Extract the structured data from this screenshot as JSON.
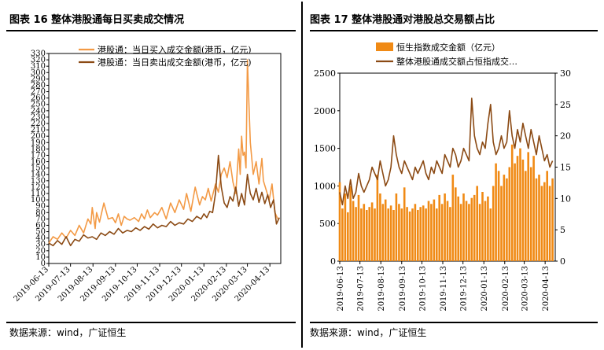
{
  "panels": {
    "left": {
      "title": "图表 16 整体港股通每日买卖成交情况",
      "source": "数据来源：wind，广证恒生"
    },
    "right": {
      "title": "图表 17 整体港股通对港股总交易额占比",
      "source": "数据来源：wind，广证恒生"
    }
  },
  "chart_data": [
    {
      "type": "line",
      "grid": false,
      "legend_placement": "top",
      "y_ticks": [
        0,
        10,
        20,
        30,
        40,
        50,
        60,
        70,
        80,
        90,
        100,
        110,
        120,
        130,
        140,
        150,
        160,
        170,
        180,
        190,
        200,
        210,
        220,
        230,
        240,
        250,
        260,
        270,
        280,
        290,
        300,
        310,
        320,
        330
      ],
      "ylim": [
        0,
        330
      ],
      "x_tick_labels": [
        "2019-06-13",
        "2019-07-13",
        "2019-08-13",
        "2019-09-13",
        "2019-10-13",
        "2019-11-13",
        "2019-12-13",
        "2020-01-13",
        "2020-02-13",
        "2020-03-13",
        "2020-04-13"
      ],
      "x_tick_days": [
        0,
        30,
        61,
        92,
        122,
        153,
        183,
        214,
        245,
        274,
        305
      ],
      "x_range_days": [
        0,
        320
      ],
      "series": [
        {
          "name": "港股通：当日买入成交金额(港币，亿元)",
          "color": "#F39A45",
          "x_days": [
            0,
            6,
            12,
            18,
            24,
            30,
            36,
            42,
            48,
            54,
            58,
            60,
            64,
            66,
            70,
            76,
            82,
            88,
            92,
            96,
            100,
            104,
            108,
            112,
            118,
            124,
            128,
            132,
            136,
            140,
            146,
            150,
            156,
            162,
            168,
            174,
            180,
            186,
            190,
            196,
            202,
            208,
            212,
            216,
            220,
            224,
            230,
            234,
            238,
            242,
            246,
            250,
            254,
            258,
            262,
            264,
            266,
            268,
            270,
            272,
            274,
            276,
            278,
            282,
            286,
            290,
            294,
            296,
            300,
            304,
            308,
            312,
            316
          ],
          "values": [
            32,
            42,
            38,
            48,
            40,
            52,
            44,
            60,
            48,
            70,
            62,
            88,
            55,
            80,
            65,
            95,
            70,
            72,
            64,
            78,
            60,
            74,
            70,
            68,
            72,
            66,
            78,
            70,
            84,
            72,
            80,
            76,
            88,
            70,
            95,
            80,
            100,
            85,
            110,
            82,
            120,
            92,
            105,
            100,
            118,
            98,
            125,
            112,
            140,
            150,
            135,
            160,
            128,
            110,
            180,
            140,
            200,
            170,
            175,
            150,
            320,
            255,
            190,
            140,
            160,
            125,
            165,
            130,
            115,
            100,
            125,
            80,
            70
          ]
        },
        {
          "name": "港股通：当日卖出成交金额(港币，亿元)",
          "color": "#8B4A14",
          "x_days": [
            0,
            6,
            12,
            18,
            24,
            30,
            36,
            42,
            48,
            54,
            60,
            66,
            72,
            78,
            84,
            90,
            96,
            102,
            108,
            114,
            120,
            126,
            132,
            138,
            144,
            150,
            156,
            162,
            168,
            174,
            180,
            186,
            192,
            198,
            204,
            210,
            214,
            218,
            222,
            226,
            230,
            234,
            238,
            242,
            246,
            250,
            254,
            258,
            262,
            266,
            270,
            274,
            278,
            282,
            286,
            290,
            294,
            298,
            302,
            306,
            310,
            314,
            318
          ],
          "values": [
            32,
            28,
            36,
            30,
            42,
            28,
            38,
            35,
            45,
            40,
            42,
            38,
            48,
            44,
            50,
            46,
            55,
            48,
            52,
            50,
            56,
            52,
            58,
            54,
            62,
            56,
            60,
            58,
            66,
            60,
            64,
            62,
            70,
            66,
            74,
            70,
            78,
            72,
            82,
            80,
            110,
            170,
            120,
            95,
            88,
            105,
            98,
            120,
            90,
            110,
            92,
            140,
            110,
            100,
            118,
            96,
            112,
            94,
            108,
            88,
            100,
            62,
            72
          ]
        }
      ]
    },
    {
      "type": "bar+line",
      "grid": false,
      "legend_placement": "top",
      "ylim_left": [
        0,
        2500
      ],
      "y_ticks_left": [
        0,
        500,
        1000,
        1500,
        2000,
        2500
      ],
      "ylim_right": [
        0,
        30
      ],
      "y_ticks_right": [
        0,
        5,
        10,
        15,
        20,
        25,
        30
      ],
      "x_tick_labels": [
        "2019-06-13",
        "2019-07-13",
        "2019-08-13",
        "2019-09-13",
        "2019-10-13",
        "2019-11-13",
        "2019-12-13",
        "2020-01-13",
        "2020-02-13",
        "2020-03-13",
        "2020-04-13"
      ],
      "x_tick_days": [
        0,
        30,
        61,
        92,
        122,
        153,
        183,
        214,
        245,
        274,
        305
      ],
      "x_range_days": [
        0,
        320
      ],
      "series": [
        {
          "name": "恒生指数成交金额（亿元）",
          "axis": "left",
          "kind": "bar",
          "color": "#F08A15",
          "x_days": [
            0,
            4,
            8,
            12,
            16,
            20,
            24,
            28,
            32,
            36,
            40,
            44,
            48,
            52,
            56,
            60,
            64,
            68,
            72,
            76,
            80,
            84,
            88,
            92,
            96,
            100,
            104,
            108,
            112,
            116,
            120,
            124,
            128,
            132,
            136,
            140,
            144,
            148,
            152,
            156,
            160,
            164,
            168,
            172,
            176,
            180,
            184,
            188,
            192,
            196,
            200,
            204,
            208,
            212,
            216,
            220,
            224,
            228,
            232,
            236,
            240,
            244,
            248,
            252,
            256,
            260,
            264,
            268,
            272,
            276,
            280,
            284,
            288,
            292,
            296,
            300,
            304,
            308,
            312,
            316
          ],
          "values": [
            1050,
            700,
            900,
            650,
            1000,
            800,
            720,
            880,
            700,
            760,
            680,
            720,
            780,
            700,
            1150,
            900,
            760,
            820,
            700,
            740,
            680,
            900,
            760,
            700,
            980,
            720,
            660,
            700,
            760,
            680,
            720,
            740,
            700,
            800,
            760,
            820,
            700,
            880,
            760,
            900,
            800,
            720,
            1150,
            980,
            860,
            760,
            900,
            800,
            760,
            840,
            880,
            1000,
            760,
            920,
            800,
            860,
            700,
            1000,
            1300,
            1200,
            1000,
            1150,
            1100,
            1250,
            1550,
            1300,
            1400,
            1500,
            1350,
            1200,
            1450,
            1250,
            1400,
            1100,
            1150,
            1000,
            1050,
            1200,
            1000,
            1100
          ]
        },
        {
          "name": "整体港股通成交额占恒指成交…",
          "axis": "right",
          "kind": "line",
          "color": "#8B4A14",
          "x_days": [
            0,
            4,
            8,
            12,
            16,
            20,
            24,
            28,
            32,
            36,
            40,
            44,
            48,
            52,
            56,
            60,
            64,
            68,
            72,
            76,
            80,
            84,
            88,
            92,
            96,
            100,
            104,
            108,
            112,
            116,
            120,
            124,
            128,
            132,
            136,
            140,
            144,
            148,
            152,
            156,
            160,
            164,
            168,
            172,
            176,
            180,
            184,
            188,
            192,
            196,
            200,
            204,
            208,
            212,
            216,
            220,
            224,
            228,
            232,
            236,
            240,
            244,
            248,
            252,
            256,
            260,
            264,
            268,
            272,
            276,
            280,
            284,
            288,
            292,
            296,
            300,
            304,
            308,
            312,
            316
          ],
          "values": [
            11,
            9,
            12,
            10,
            13,
            10,
            11,
            14,
            12,
            11,
            12,
            13,
            15,
            14,
            13,
            16,
            14,
            12,
            13,
            15,
            20,
            17,
            15,
            14,
            16,
            15,
            14,
            13,
            15,
            14,
            15,
            16,
            14,
            13,
            15,
            14,
            16,
            15,
            14,
            17,
            16,
            15,
            18,
            17,
            15,
            16,
            18,
            17,
            16,
            26,
            20,
            18,
            17,
            19,
            18,
            22,
            25,
            19,
            17,
            18,
            20,
            18,
            19,
            24,
            20,
            18,
            21,
            19,
            22,
            20,
            18,
            21,
            19,
            17,
            20,
            18,
            16,
            17,
            15,
            16
          ]
        }
      ]
    }
  ]
}
